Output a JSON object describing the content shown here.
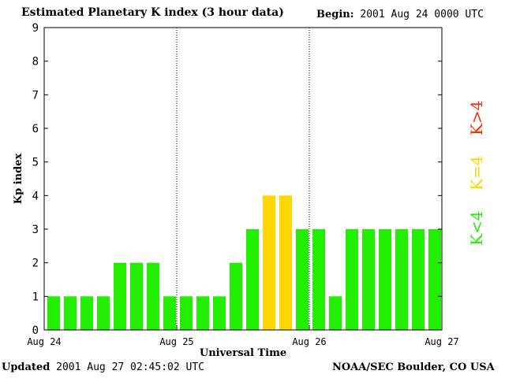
{
  "header": {
    "title": "Estimated Planetary K index (3 hour data)",
    "begin_label": "Begin:",
    "begin_value": "2001 Aug 24 0000 UTC"
  },
  "footer": {
    "updated_label": "Updated",
    "updated_value": "2001 Aug 27 02:45:02 UTC",
    "credit": "NOAA/SEC Boulder, CO USA"
  },
  "legend": [
    {
      "label": "K>4",
      "color": "#ff2a00"
    },
    {
      "label": "K=4",
      "color": "#ffd700"
    },
    {
      "label": "K<4",
      "color": "#22ee00"
    }
  ],
  "chart_data": {
    "type": "bar",
    "title": "Estimated Planetary K index (3 hour data)",
    "xlabel": "Universal Time",
    "ylabel": "Kp index",
    "ylim": [
      0,
      9
    ],
    "yticks": [
      "0",
      "1",
      "2",
      "3",
      "4",
      "5",
      "6",
      "7",
      "8",
      "9"
    ],
    "day_labels": [
      "Aug 24",
      "Aug 25",
      "Aug 26",
      "Aug 27"
    ],
    "values": [
      1,
      1,
      1,
      1,
      2,
      2,
      2,
      1,
      1,
      1,
      1,
      2,
      3,
      4,
      4,
      3,
      3,
      1,
      3,
      3,
      3,
      3,
      3,
      3
    ],
    "colors": {
      "low": "#22ee00",
      "mid": "#ffd700",
      "high": "#ff2a00"
    }
  }
}
